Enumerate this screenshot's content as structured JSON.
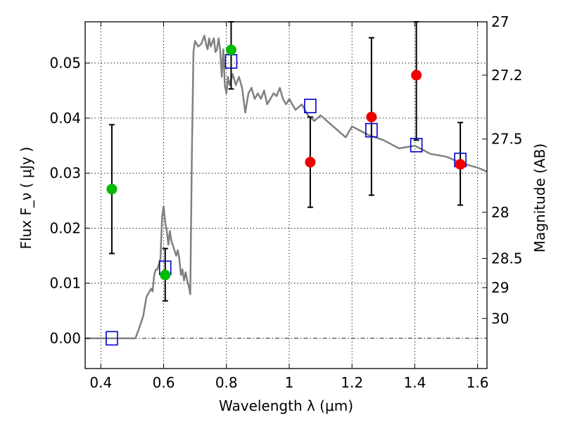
{
  "chart_data": {
    "type": "scatter",
    "xlabel": "Wavelength  λ (μm)",
    "ylabel": "Flux  F_ν  ( μJy )",
    "ylabel_right": "Magnitude (AB)",
    "xlim": [
      0.35,
      1.63
    ],
    "ylim": [
      -0.0055,
      0.0575
    ],
    "grid": true,
    "x_ticks": [
      0.4,
      0.6,
      0.8,
      1.0,
      1.2,
      1.4,
      1.6
    ],
    "x_tick_labels": [
      "0.4",
      "0.6",
      "0.8",
      "1",
      "1.2",
      "1.4",
      "1.6"
    ],
    "y_ticks": [
      0.0,
      0.01,
      0.02,
      0.03,
      0.04,
      0.05
    ],
    "y_tick_labels": [
      "0.00",
      "0.01",
      "0.02",
      "0.03",
      "0.04",
      "0.05"
    ],
    "right_ticks": [
      {
        "label": "27",
        "flux": 0.0575
      },
      {
        "label": "27.2",
        "flux": 0.0478
      },
      {
        "label": "27.5",
        "flux": 0.0362
      },
      {
        "label": "28",
        "flux": 0.0229
      },
      {
        "label": "28.5",
        "flux": 0.0145
      },
      {
        "label": "29",
        "flux": 0.0092
      },
      {
        "label": "30",
        "flux": 0.0036
      }
    ],
    "series": [
      {
        "kind": "sed_model_line",
        "color": "#808080",
        "x": [
          0.35,
          0.51,
          0.52,
          0.535,
          0.545,
          0.56,
          0.565,
          0.57,
          0.575,
          0.58,
          0.59,
          0.595,
          0.6,
          0.605,
          0.61,
          0.615,
          0.62,
          0.625,
          0.63,
          0.64,
          0.645,
          0.65,
          0.655,
          0.66,
          0.665,
          0.67,
          0.675,
          0.68,
          0.685,
          0.69,
          0.695,
          0.7,
          0.705,
          0.71,
          0.72,
          0.73,
          0.735,
          0.74,
          0.745,
          0.75,
          0.76,
          0.765,
          0.77,
          0.775,
          0.78,
          0.785,
          0.79,
          0.795,
          0.8,
          0.805,
          0.81,
          0.82,
          0.83,
          0.84,
          0.85,
          0.86,
          0.87,
          0.88,
          0.89,
          0.9,
          0.91,
          0.92,
          0.93,
          0.94,
          0.95,
          0.96,
          0.97,
          0.98,
          0.99,
          1.0,
          1.02,
          1.04,
          1.06,
          1.08,
          1.1,
          1.12,
          1.14,
          1.16,
          1.18,
          1.2,
          1.25,
          1.3,
          1.35,
          1.4,
          1.45,
          1.5,
          1.55,
          1.6,
          1.63
        ],
        "y": [
          0.0,
          0.0,
          0.0015,
          0.004,
          0.0075,
          0.009,
          0.0085,
          0.0115,
          0.0125,
          0.0125,
          0.0145,
          0.022,
          0.024,
          0.021,
          0.0195,
          0.017,
          0.0195,
          0.0175,
          0.0168,
          0.015,
          0.016,
          0.0145,
          0.0115,
          0.0125,
          0.0105,
          0.012,
          0.0105,
          0.0095,
          0.008,
          0.034,
          0.052,
          0.054,
          0.0535,
          0.053,
          0.0535,
          0.055,
          0.0535,
          0.0525,
          0.0545,
          0.053,
          0.0545,
          0.052,
          0.0525,
          0.0545,
          0.0525,
          0.0475,
          0.0525,
          0.046,
          0.0445,
          0.0475,
          0.046,
          0.048,
          0.046,
          0.0475,
          0.0455,
          0.041,
          0.0445,
          0.0455,
          0.0435,
          0.0445,
          0.0435,
          0.045,
          0.0425,
          0.0435,
          0.0445,
          0.044,
          0.0455,
          0.0435,
          0.0425,
          0.0435,
          0.0415,
          0.0425,
          0.0405,
          0.0395,
          0.0405,
          0.0395,
          0.0385,
          0.0375,
          0.0365,
          0.0385,
          0.037,
          0.036,
          0.0345,
          0.035,
          0.0335,
          0.033,
          0.0318,
          0.031,
          0.0303
        ]
      },
      {
        "kind": "blue_open_squares",
        "color": "#0000cc",
        "x": [
          0.435,
          0.605,
          0.815,
          1.067,
          1.262,
          1.405,
          1.545
        ],
        "y": [
          0.0,
          0.0128,
          0.0503,
          0.0422,
          0.0378,
          0.0351,
          0.0324
        ]
      },
      {
        "kind": "green_points",
        "color": "#00bb00",
        "x": [
          0.435,
          0.605,
          0.815
        ],
        "y": [
          0.0271,
          0.0115,
          0.0524
        ],
        "yerr_low": [
          0.0154,
          0.0068,
          0.0453
        ],
        "yerr_high": [
          0.0388,
          0.0163,
          0.0575
        ]
      },
      {
        "kind": "red_points",
        "color": "#ee0000",
        "x": [
          1.067,
          1.262,
          1.405,
          1.545
        ],
        "y": [
          0.032,
          0.0402,
          0.0478,
          0.0316
        ],
        "yerr_low": [
          0.0238,
          0.026,
          0.036,
          0.0242
        ],
        "yerr_high": [
          0.0402,
          0.0546,
          0.0575,
          0.0392
        ]
      }
    ]
  }
}
